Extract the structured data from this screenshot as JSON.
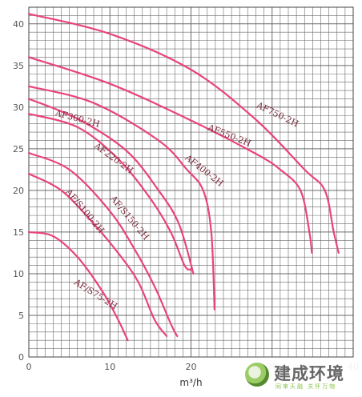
{
  "chart_data": {
    "type": "line",
    "title": "",
    "xlabel": "m³/h",
    "ylabel": "",
    "xlim": [
      0,
      40
    ],
    "ylim": [
      0,
      42
    ],
    "grid": true,
    "x_ticks": [
      "0",
      "10",
      "20",
      "30",
      "40"
    ],
    "y_ticks": [
      "0",
      "5",
      "10",
      "15",
      "20",
      "25",
      "30",
      "35",
      "40"
    ],
    "line_color": "#e8447c",
    "label_color": "#7a2a3a",
    "grid_color": "#6a6a6a",
    "series": [
      {
        "name": "AF750-2H",
        "x": [
          0,
          10,
          20,
          28,
          34,
          36.5,
          37.6,
          38.2
        ],
        "y": [
          41.2,
          38.8,
          34.5,
          28.5,
          22.5,
          20,
          15,
          12.5
        ]
      },
      {
        "name": "AF550-2H",
        "x": [
          0,
          10,
          20,
          28,
          31,
          33.5,
          34.6,
          34.9
        ],
        "y": [
          36,
          32.8,
          28.4,
          24.4,
          22.5,
          20,
          15,
          12.5
        ]
      },
      {
        "name": "AF400-2H",
        "x": [
          0,
          8,
          16,
          19.5,
          21.5,
          22.5,
          22.9
        ],
        "y": [
          32.5,
          30.5,
          26,
          22.5,
          20,
          15,
          5.7
        ]
      },
      {
        "name": "AF300-2H",
        "x": [
          0,
          6,
          12,
          16,
          18.5,
          20.3
        ],
        "y": [
          31,
          28.6,
          24.8,
          20,
          16,
          10
        ]
      },
      {
        "name": "AF220-2H",
        "x": [
          0,
          6,
          11,
          15,
          17.5,
          19.2,
          20
        ],
        "y": [
          29.2,
          27.6,
          23.8,
          19,
          15,
          11,
          10.5
        ]
      },
      {
        "name": "AF/S150-2H",
        "x": [
          0,
          5,
          10,
          13,
          15.5,
          17.5,
          18.3
        ],
        "y": [
          24.5,
          22.5,
          17.5,
          13,
          8.5,
          4,
          2.5
        ]
      },
      {
        "name": "AF/S100-2H",
        "x": [
          0,
          4,
          8,
          11,
          13.5,
          15.5,
          17
        ],
        "y": [
          22,
          20,
          16,
          12.5,
          9,
          4.5,
          2.5
        ]
      },
      {
        "name": "AF/S75-2H",
        "x": [
          0,
          3,
          6,
          9,
          11,
          12.2
        ],
        "y": [
          15,
          14.5,
          12,
          8,
          4.5,
          2
        ]
      }
    ],
    "annotations": [
      {
        "text": "AF750-2H",
        "x": 28,
        "y": 30,
        "angle": 26
      },
      {
        "text": "AF550-2H",
        "x": 22,
        "y": 27.3,
        "angle": 22
      },
      {
        "text": "AF400-2H",
        "x": 19.2,
        "y": 23.8,
        "angle": 38
      },
      {
        "text": "AF300-2H",
        "x": 3.2,
        "y": 29,
        "angle": 15
      },
      {
        "text": "AF220-2H",
        "x": 8,
        "y": 25.2,
        "angle": 36
      },
      {
        "text": "AF/S150-2H",
        "x": 10,
        "y": 19,
        "angle": 50
      },
      {
        "text": "AF/S100-2H",
        "x": 4.5,
        "y": 19.8,
        "angle": 50
      },
      {
        "text": "AF/S75-2H",
        "x": 5.5,
        "y": 8.8,
        "angle": 32
      }
    ]
  },
  "logo": {
    "brand": "建成环境",
    "slogan": "同审天融 关怀万物"
  }
}
